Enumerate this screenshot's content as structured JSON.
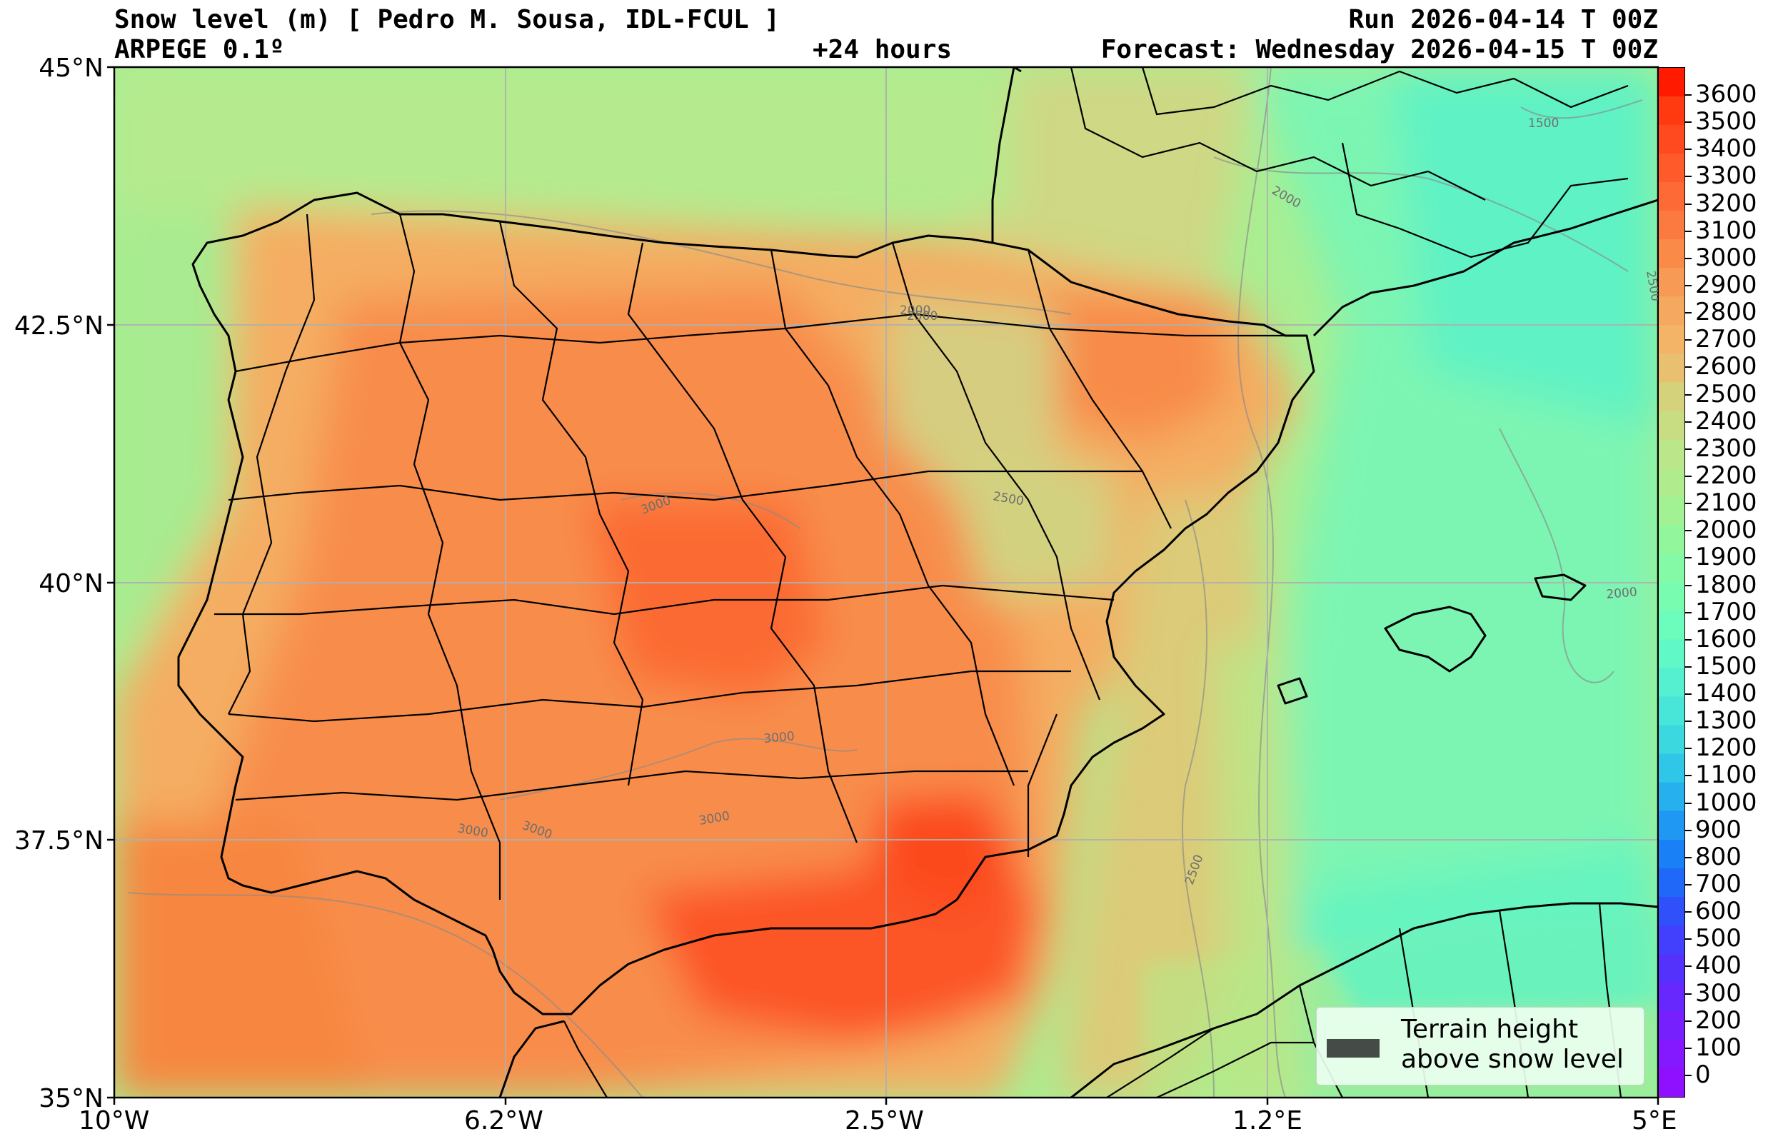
{
  "header": {
    "title_left": "Snow level (m) [ Pedro M. Sousa, IDL-FCUL ]",
    "model": "ARPEGE 0.1º",
    "lead_time": "+24 hours",
    "run": "Run 2026-04-14 T 00Z",
    "forecast": "Forecast: Wednesday 2026-04-15 T 00Z"
  },
  "axes": {
    "lat_labels": [
      "45°N",
      "42.5°N",
      "40°N",
      "37.5°N",
      "35°N"
    ],
    "lon_labels": [
      "10°W",
      "6.2°W",
      "2.5°W",
      "1.2°E",
      "5°E"
    ]
  },
  "colorbar": {
    "labels": [
      "3600",
      "3500",
      "3400",
      "3300",
      "3200",
      "3100",
      "3000",
      "2900",
      "2800",
      "2700",
      "2600",
      "2500",
      "2400",
      "2300",
      "2200",
      "2100",
      "2000",
      "1900",
      "1800",
      "1700",
      "1600",
      "1500",
      "1400",
      "1300",
      "1200",
      "1100",
      "1000",
      "900",
      "800",
      "700",
      "600",
      "500",
      "400",
      "300",
      "200",
      "100",
      "0"
    ],
    "colors": [
      "#ff1a00",
      "#ff3a10",
      "#ff4a20",
      "#fe5a2a",
      "#fd6a35",
      "#fb7a40",
      "#f98a48",
      "#f79a55",
      "#f5a860",
      "#f3b468",
      "#e8c070",
      "#d4d27a",
      "#c8dc82",
      "#bce68a",
      "#b0ec8e",
      "#a2f294",
      "#92f79c",
      "#84faa6",
      "#78fcb0",
      "#6cfcbc",
      "#60f8c6",
      "#54f0d0",
      "#48e6d8",
      "#3cd8e0",
      "#30c6e8",
      "#26b0ee",
      "#1e98f2",
      "#1a80f6",
      "#2068f8",
      "#3050fa",
      "#4240fc",
      "#5432fc",
      "#6628fd",
      "#7620fe",
      "#8418fe",
      "#8e10ff"
    ]
  },
  "contour_labels": [
    "1500",
    "2000",
    "2500",
    "2500",
    "2500",
    "3000",
    "3000",
    "3000",
    "3000",
    "2000",
    "2500",
    "3000",
    "2000"
  ],
  "legend": {
    "line1": "Terrain height",
    "line2": "above snow level",
    "swatch_color": "#454c47"
  }
}
